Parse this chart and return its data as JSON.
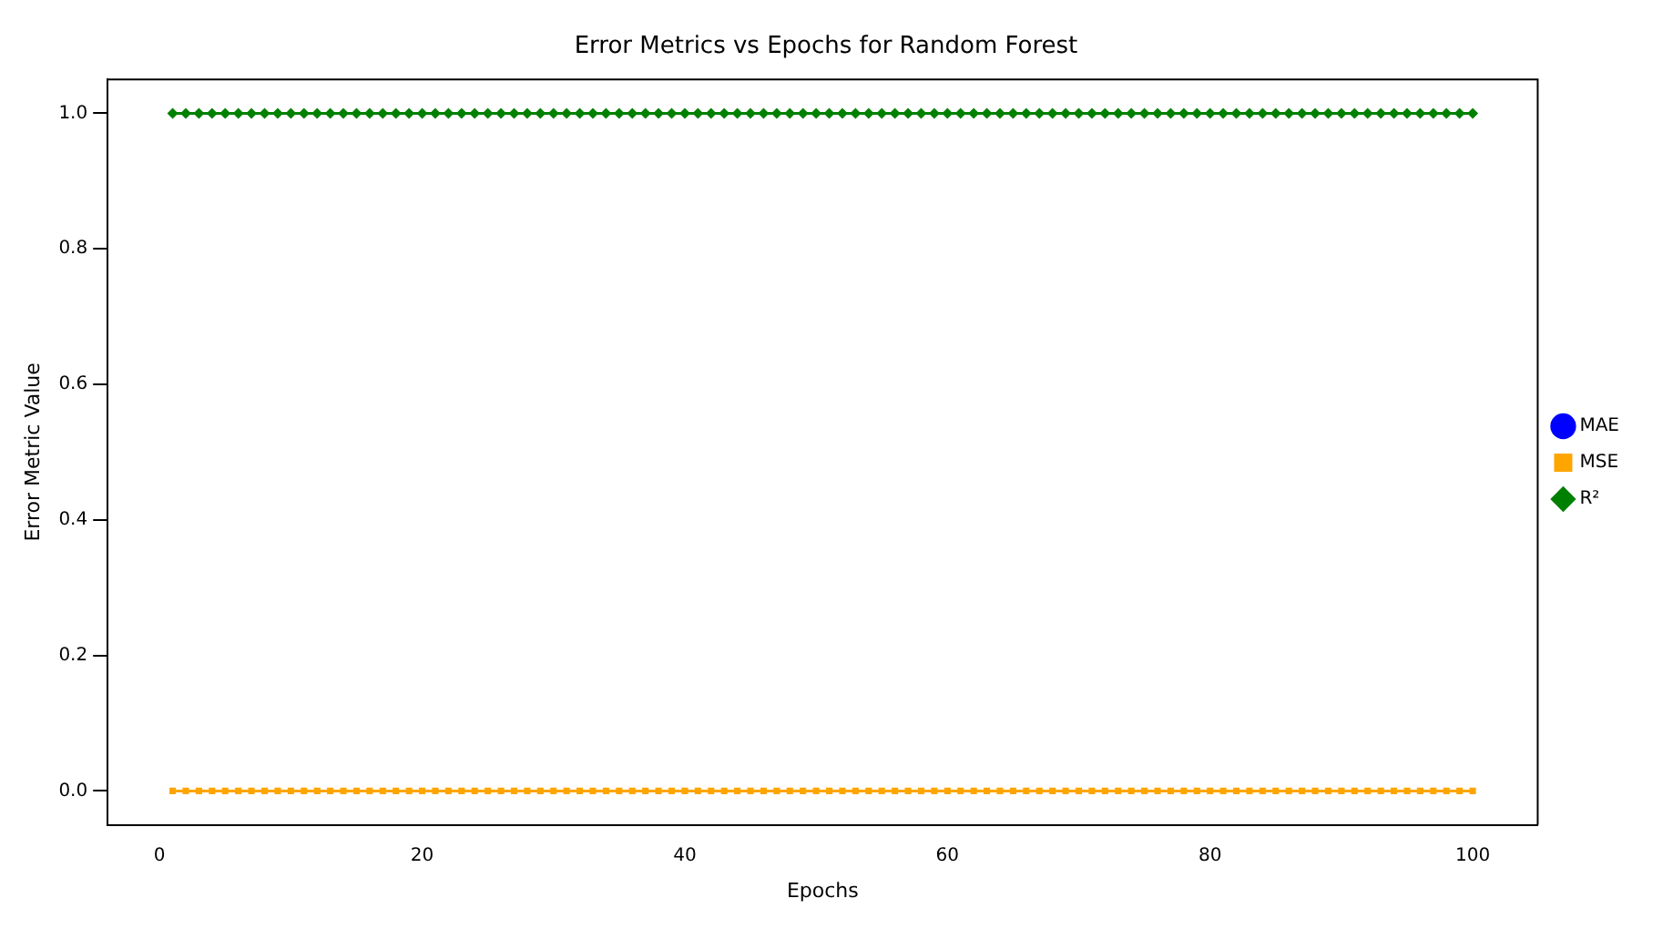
{
  "chart_data": {
    "type": "line",
    "title": "Error Metrics vs Epochs for Random Forest",
    "xlabel": "Epochs",
    "ylabel": "Error Metric Value",
    "x": [
      1,
      2,
      3,
      4,
      5,
      6,
      7,
      8,
      9,
      10,
      11,
      12,
      13,
      14,
      15,
      16,
      17,
      18,
      19,
      20,
      21,
      22,
      23,
      24,
      25,
      26,
      27,
      28,
      29,
      30,
      31,
      32,
      33,
      34,
      35,
      36,
      37,
      38,
      39,
      40,
      41,
      42,
      43,
      44,
      45,
      46,
      47,
      48,
      49,
      50,
      51,
      52,
      53,
      54,
      55,
      56,
      57,
      58,
      59,
      60,
      61,
      62,
      63,
      64,
      65,
      66,
      67,
      68,
      69,
      70,
      71,
      72,
      73,
      74,
      75,
      76,
      77,
      78,
      79,
      80,
      81,
      82,
      83,
      84,
      85,
      86,
      87,
      88,
      89,
      90,
      91,
      92,
      93,
      94,
      95,
      96,
      97,
      98,
      99,
      100
    ],
    "series": [
      {
        "name": "MAE",
        "color": "#0000ff",
        "marker": "circle",
        "values": [
          null,
          null,
          null,
          null,
          null,
          null,
          null,
          null,
          null,
          null,
          null,
          null,
          null,
          null,
          null,
          null,
          null,
          null,
          null,
          null,
          null,
          null,
          null,
          null,
          null,
          null,
          null,
          null,
          null,
          null,
          null,
          null,
          null,
          null,
          null,
          null,
          null,
          null,
          null,
          null,
          null,
          null,
          null,
          null,
          null,
          null,
          null,
          null,
          null,
          null,
          null,
          null,
          null,
          null,
          null,
          null,
          null,
          null,
          null,
          null,
          null,
          null,
          null,
          null,
          null,
          null,
          null,
          null,
          null,
          null,
          null,
          null,
          null,
          null,
          null,
          null,
          null,
          null,
          null,
          null,
          null,
          null,
          null,
          null,
          null,
          null,
          null,
          null,
          null,
          null,
          null,
          null,
          null,
          null,
          null,
          null,
          null,
          null,
          null,
          null
        ]
      },
      {
        "name": "MSE",
        "color": "#ffa500",
        "marker": "square",
        "values": [
          0,
          0,
          0,
          0,
          0,
          0,
          0,
          0,
          0,
          0,
          0,
          0,
          0,
          0,
          0,
          0,
          0,
          0,
          0,
          0,
          0,
          0,
          0,
          0,
          0,
          0,
          0,
          0,
          0,
          0,
          0,
          0,
          0,
          0,
          0,
          0,
          0,
          0,
          0,
          0,
          0,
          0,
          0,
          0,
          0,
          0,
          0,
          0,
          0,
          0,
          0,
          0,
          0,
          0,
          0,
          0,
          0,
          0,
          0,
          0,
          0,
          0,
          0,
          0,
          0,
          0,
          0,
          0,
          0,
          0,
          0,
          0,
          0,
          0,
          0,
          0,
          0,
          0,
          0,
          0,
          0,
          0,
          0,
          0,
          0,
          0,
          0,
          0,
          0,
          0,
          0,
          0,
          0,
          0,
          0,
          0,
          0,
          0,
          0,
          0
        ]
      },
      {
        "name": "R²",
        "color": "#008000",
        "marker": "diamond",
        "values": [
          1,
          1,
          1,
          1,
          1,
          1,
          1,
          1,
          1,
          1,
          1,
          1,
          1,
          1,
          1,
          1,
          1,
          1,
          1,
          1,
          1,
          1,
          1,
          1,
          1,
          1,
          1,
          1,
          1,
          1,
          1,
          1,
          1,
          1,
          1,
          1,
          1,
          1,
          1,
          1,
          1,
          1,
          1,
          1,
          1,
          1,
          1,
          1,
          1,
          1,
          1,
          1,
          1,
          1,
          1,
          1,
          1,
          1,
          1,
          1,
          1,
          1,
          1,
          1,
          1,
          1,
          1,
          1,
          1,
          1,
          1,
          1,
          1,
          1,
          1,
          1,
          1,
          1,
          1,
          1,
          1,
          1,
          1,
          1,
          1,
          1,
          1,
          1,
          1,
          1,
          1,
          1,
          1,
          1,
          1,
          1,
          1,
          1,
          1,
          1
        ]
      }
    ],
    "xlim": [
      -3.95,
      104.95
    ],
    "xticks": [
      0,
      20,
      40,
      60,
      80,
      100
    ],
    "ylim": [
      -0.05,
      1.05
    ],
    "yticks": [
      {
        "value": 0,
        "label": "0.0"
      },
      {
        "value": 0.2,
        "label": "0.2"
      },
      {
        "value": 0.4,
        "label": "0.4"
      },
      {
        "value": 0.6,
        "label": "0.6"
      },
      {
        "value": 0.8,
        "label": "0.8"
      },
      {
        "value": 1,
        "label": "1.0"
      }
    ],
    "legend": "right",
    "grid": false,
    "line_style": "solid"
  }
}
